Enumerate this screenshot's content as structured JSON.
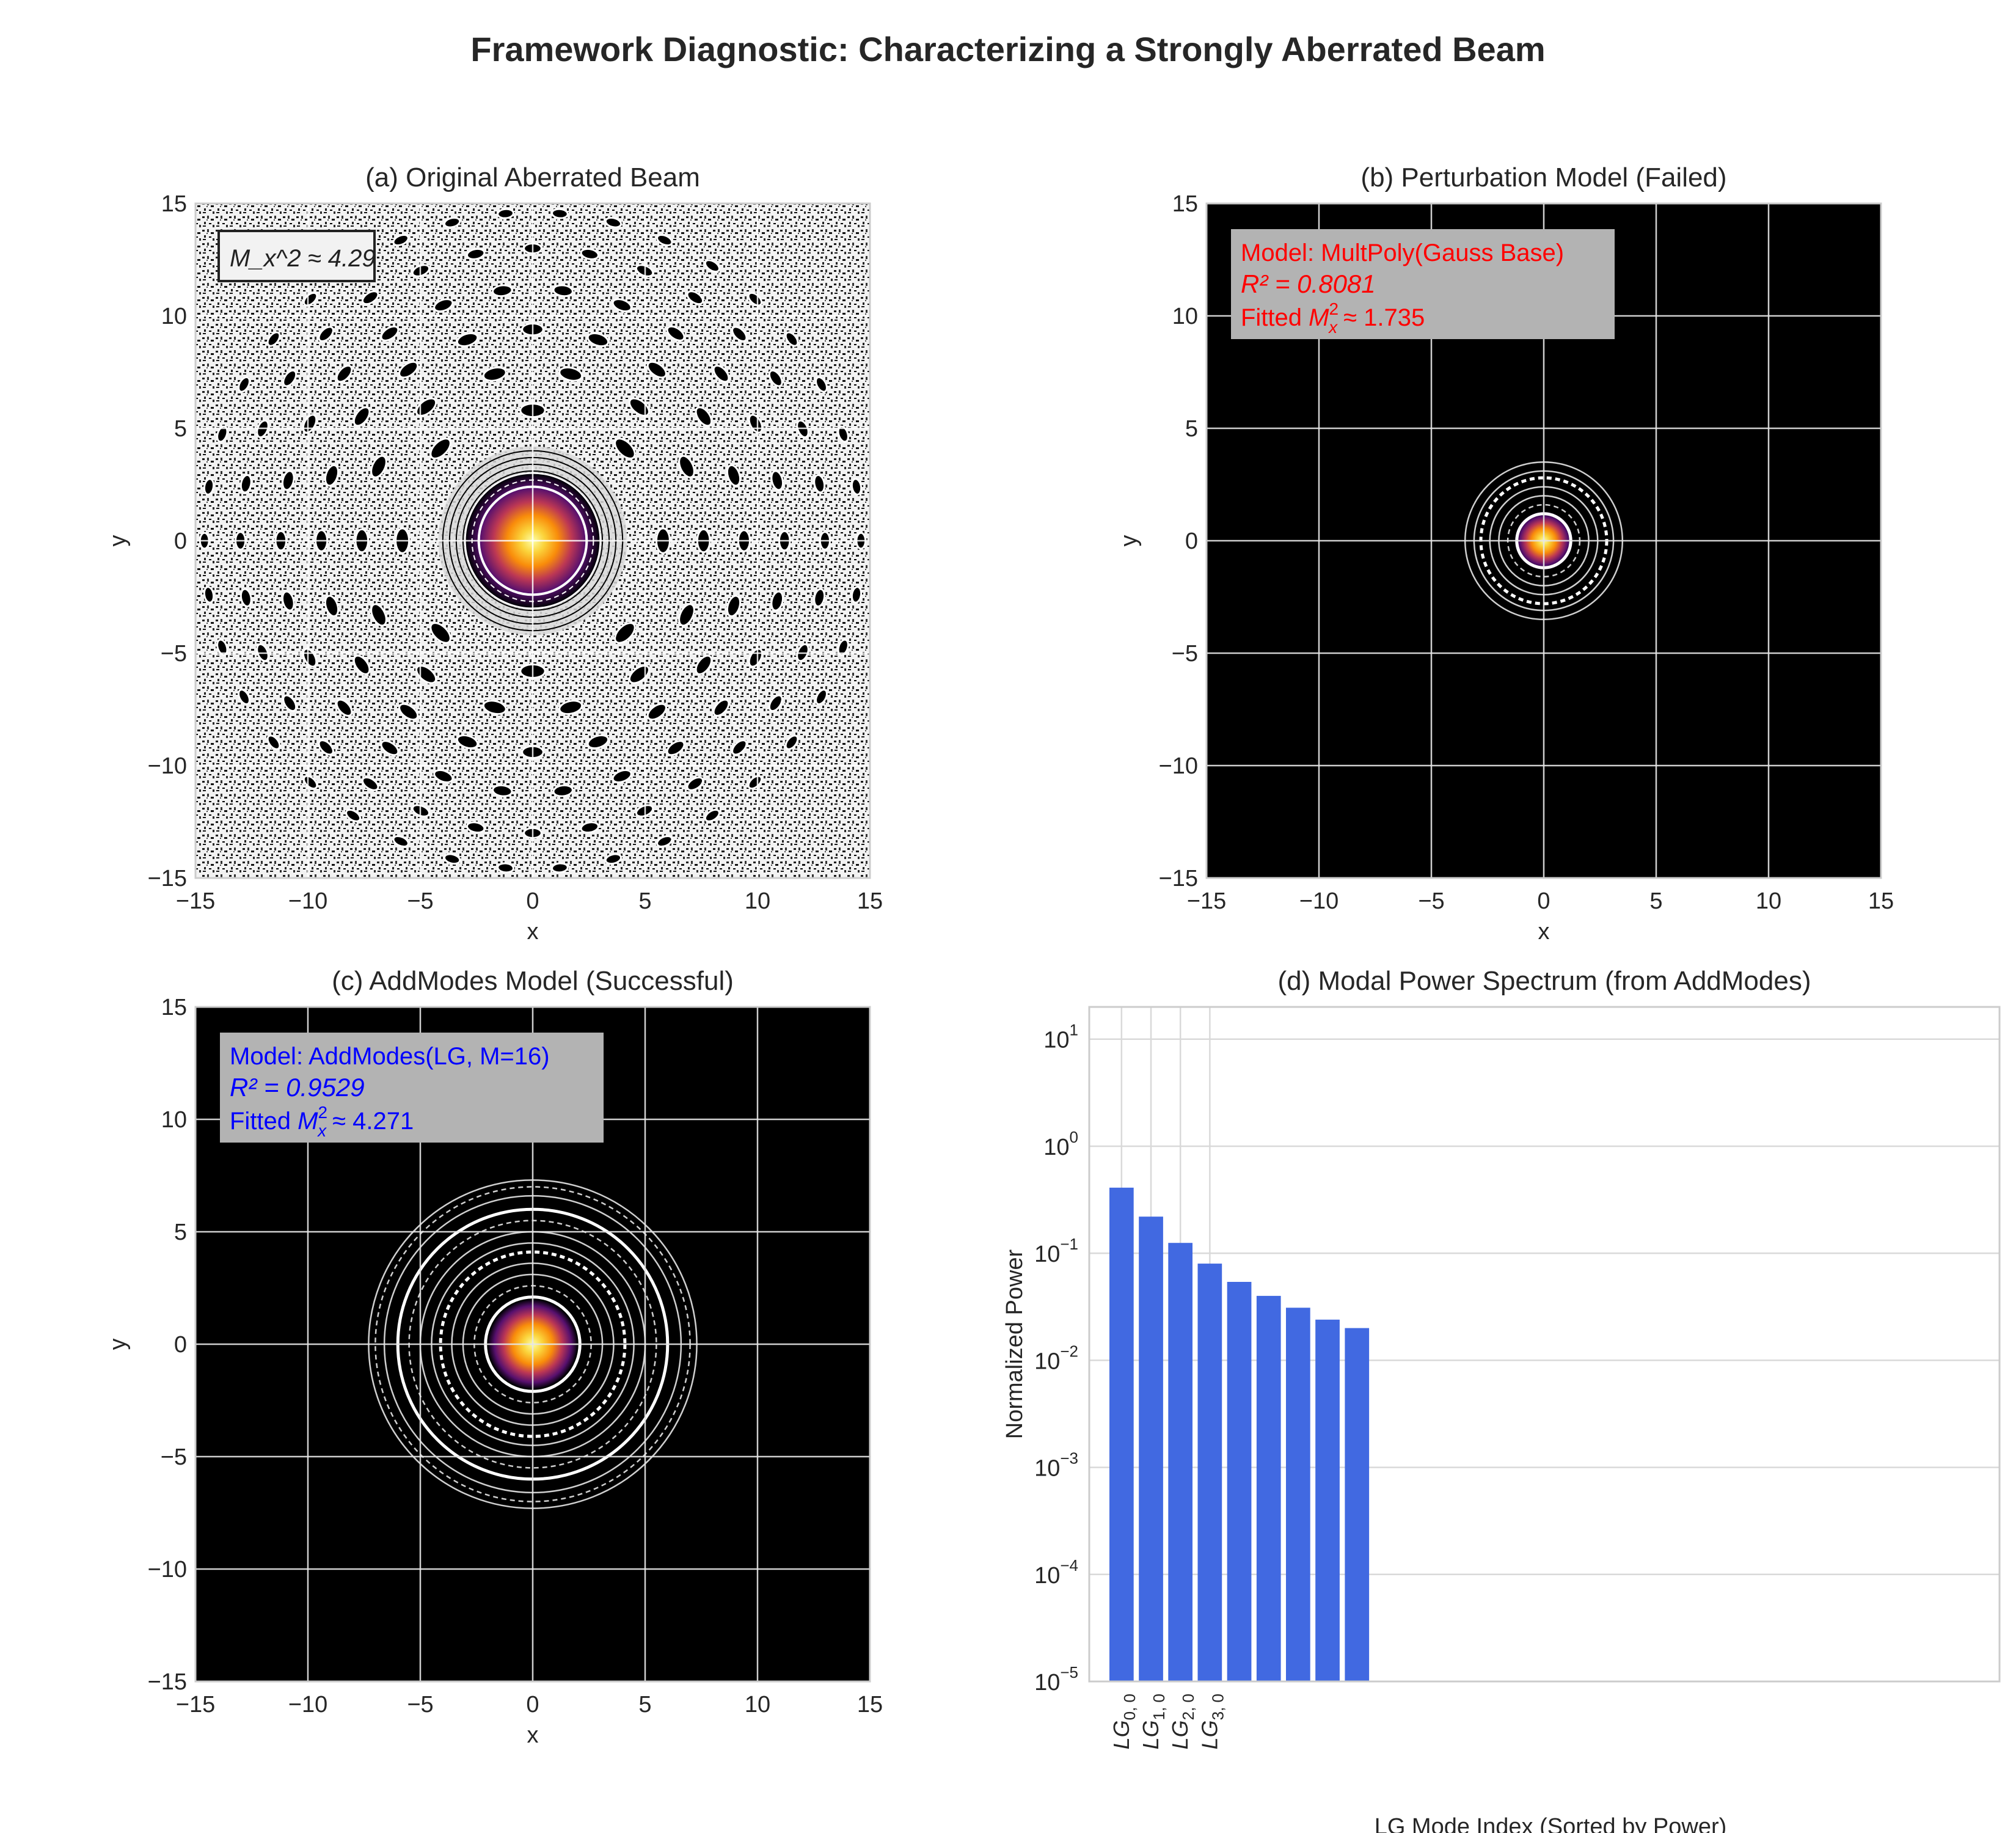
{
  "figure": {
    "title": "Framework Diagnostic: Characterizing a Strongly Aberrated Beam"
  },
  "colors": {
    "background": "#ffffff",
    "plot_bg_dark": "#000000",
    "grid_light": "#d9d9d9",
    "grid_on_dark": "#e6e6e6",
    "text": "#262626",
    "bar": "#4169e1",
    "red_annotation": "#ff0000",
    "blue_annotation": "#0000ff",
    "annotation_box": "#b3b3b3"
  },
  "chart_data": [
    {
      "id": "a",
      "type": "heatmap",
      "title": "(a) Original Aberrated Beam",
      "xlabel": "x",
      "ylabel": "y",
      "xlim": [
        -15,
        15
      ],
      "ylim": [
        -15,
        15
      ],
      "xticks": [
        "−15",
        "−10",
        "−5",
        "0",
        "5",
        "10",
        "15"
      ],
      "yticks": [
        "15",
        "10",
        "5",
        "0",
        "−5",
        "−10",
        "−15"
      ],
      "grid": true,
      "colormap": "inferno",
      "annotation": {
        "lines": [
          "M_x^2 ≈ 4.29"
        ],
        "m2": 4.29
      }
    },
    {
      "id": "b",
      "type": "heatmap",
      "title": "(b) Perturbation Model (Failed)",
      "xlabel": "x",
      "ylabel": "y",
      "xlim": [
        -15,
        15
      ],
      "ylim": [
        -15,
        15
      ],
      "xticks": [
        "−15",
        "−10",
        "−5",
        "0",
        "5",
        "10",
        "15"
      ],
      "yticks": [
        "15",
        "10",
        "5",
        "0",
        "−5",
        "−10",
        "−15"
      ],
      "grid": true,
      "colormap": "inferno",
      "contour_radii": [
        1.2,
        1.6,
        2.0,
        2.4,
        2.8,
        3.1,
        3.5
      ],
      "annotation": {
        "model": "Model: MultPoly(Gauss Base)",
        "r2": "R² = 0.8081",
        "fit_prefix": "Fitted ",
        "fit_value": "≈ 1.735"
      }
    },
    {
      "id": "c",
      "type": "heatmap",
      "title": "(c) AddModes Model (Successful)",
      "xlabel": "x",
      "ylabel": "y",
      "xlim": [
        -15,
        15
      ],
      "ylim": [
        -15,
        15
      ],
      "xticks": [
        "−15",
        "−10",
        "−5",
        "0",
        "5",
        "10",
        "15"
      ],
      "yticks": [
        "15",
        "10",
        "5",
        "0",
        "−5",
        "−10",
        "−15"
      ],
      "grid": true,
      "colormap": "inferno",
      "contour_radii": [
        2.1,
        2.6,
        3.1,
        3.6,
        4.1,
        4.5,
        5.0,
        5.5,
        6.0,
        6.6,
        7.0,
        7.3
      ],
      "annotation": {
        "model": "Model: AddModes(LG, M=16)",
        "r2": "R² = 0.9529",
        "fit_prefix": "Fitted ",
        "fit_value": "≈ 4.271"
      }
    },
    {
      "id": "d",
      "type": "bar",
      "title": "(d) Modal Power Spectrum (from AddModes)",
      "xlabel": "LG Mode Index (Sorted by Power)",
      "ylabel": "Normalized Power",
      "yscale": "log",
      "ylim": [
        1e-05,
        20
      ],
      "yticks": [
        {
          "base": "10",
          "exp": "1",
          "value": 10
        },
        {
          "base": "10",
          "exp": "0",
          "value": 1
        },
        {
          "base": "10",
          "exp": "−1",
          "value": 0.1
        },
        {
          "base": "10",
          "exp": "−2",
          "value": 0.01
        },
        {
          "base": "10",
          "exp": "−3",
          "value": 0.001
        },
        {
          "base": "10",
          "exp": "−4",
          "value": 0.0001
        },
        {
          "base": "10",
          "exp": "−5",
          "value": 1e-05
        }
      ],
      "n_slots": 30,
      "values": [
        0.41,
        0.22,
        0.125,
        0.08,
        0.054,
        0.04,
        0.031,
        0.024,
        0.02
      ],
      "xtick_labels": [
        {
          "main": "LG",
          "sub": "0, 0"
        },
        {
          "main": "LG",
          "sub": "1, 0"
        },
        {
          "main": "LG",
          "sub": "2, 0"
        },
        {
          "main": "LG",
          "sub": "3, 0"
        }
      ]
    }
  ]
}
